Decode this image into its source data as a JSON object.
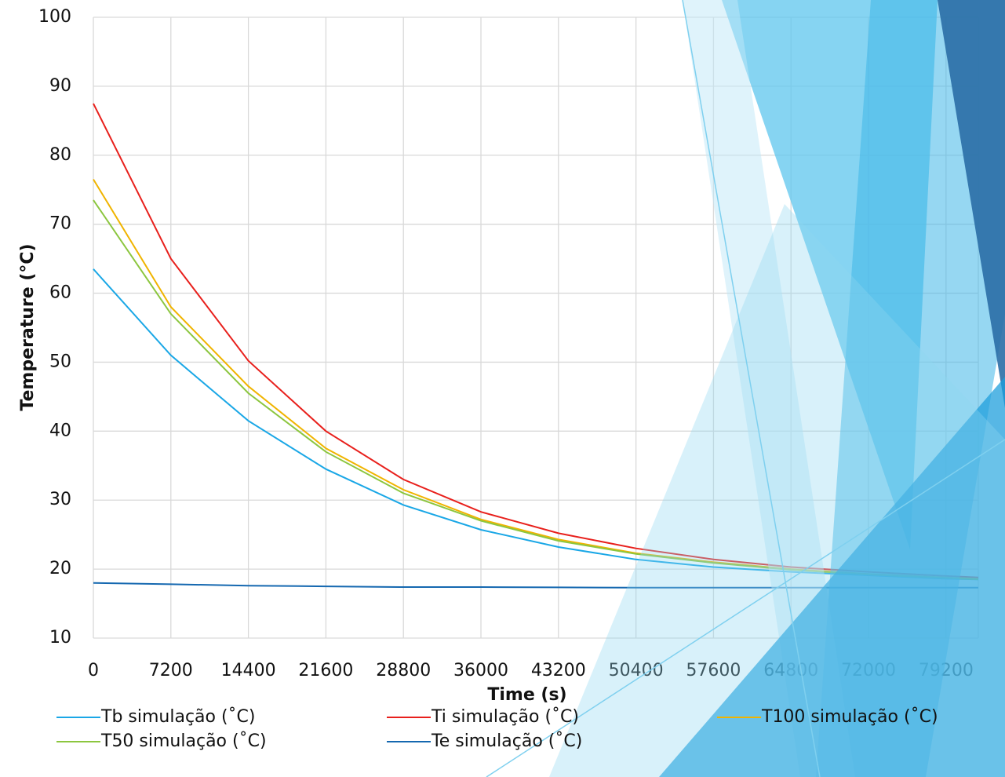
{
  "chart_data": {
    "type": "line",
    "x_label": "Time (s)",
    "y_label": "Temperature (°C)",
    "x": [
      0,
      7200,
      14400,
      21600,
      28800,
      36000,
      43200,
      50400,
      57600,
      64800,
      72000,
      79200,
      82200
    ],
    "series": [
      {
        "name": "Tb simulação (˚C)",
        "color": "#1aa7e6",
        "values": [
          63.5,
          51,
          41.5,
          34.5,
          29.3,
          25.7,
          23.2,
          21.4,
          20.3,
          19.6,
          19.1,
          18.6,
          18.5
        ]
      },
      {
        "name": "Ti simulação (˚C)",
        "color": "#e8201c",
        "values": [
          87.5,
          65,
          50.2,
          40,
          33,
          28.3,
          25.2,
          23,
          21.4,
          20.3,
          19.6,
          19.0,
          18.8
        ]
      },
      {
        "name": "T100 simulação (˚C)",
        "color": "#f0b400",
        "values": [
          76.5,
          58,
          46.5,
          37.5,
          31.5,
          27.2,
          24.3,
          22.3,
          21,
          20,
          19.3,
          18.8,
          18.6
        ]
      },
      {
        "name": "T50 simulação (˚C)",
        "color": "#8cc63f",
        "values": [
          73.5,
          57,
          45.5,
          37,
          31,
          27,
          24.1,
          22.2,
          20.9,
          19.9,
          19.2,
          18.7,
          18.5
        ]
      },
      {
        "name": "Te simulação (˚C)",
        "color": "#1568b0",
        "values": [
          18,
          17.8,
          17.6,
          17.5,
          17.4,
          17.4,
          17.35,
          17.3,
          17.3,
          17.3,
          17.3,
          17.3,
          17.3
        ]
      }
    ],
    "xlim": [
      0,
      82200
    ],
    "xticks": [
      0,
      7200,
      14400,
      21600,
      28800,
      36000,
      43200,
      50400,
      57600,
      64800,
      72000,
      79200
    ],
    "ylim": [
      10,
      100
    ],
    "yticks": [
      10,
      20,
      30,
      40,
      50,
      60,
      70,
      80,
      90,
      100
    ],
    "grid": true,
    "legend": "bottom"
  }
}
